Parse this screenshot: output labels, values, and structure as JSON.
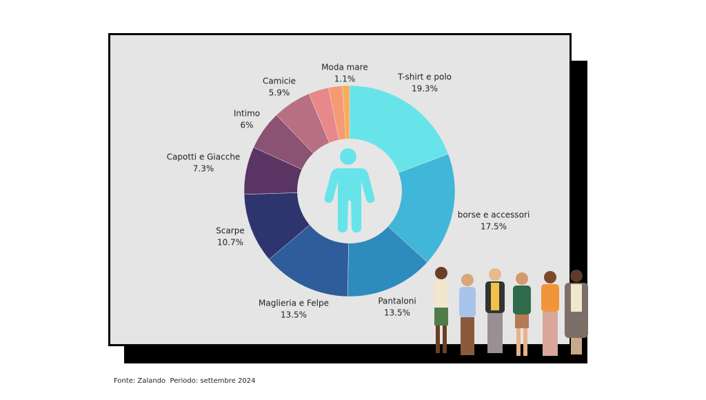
{
  "chart_data": {
    "type": "pie",
    "categories": [
      "T-shirt e polo",
      "borse e accessori",
      "Pantaloni",
      "Maglieria e Felpe",
      "Scarpe",
      "Capotti e Giacche",
      "Intimo",
      "Camicie",
      null,
      null,
      "Moda mare"
    ],
    "values": [
      19.3,
      17.5,
      13.5,
      13.5,
      10.7,
      7.3,
      6,
      5.9,
      3.1,
      2.1,
      1.1
    ],
    "value_labels": [
      "19.3%",
      "17.5%",
      "13.5%",
      "13.5%",
      "10.7%",
      "7.3%",
      "6%",
      "5.9%",
      null,
      null,
      "1.1%"
    ],
    "colors": [
      "#67e4ea",
      "#40b6d8",
      "#2e8bbd",
      "#2f5c9b",
      "#2e356e",
      "#5a3564",
      "#8a5273",
      "#b96f82",
      "#e8888a",
      "#f69a74",
      "#f8ad5a"
    ],
    "source": "Fonte: Zalando  Periodo: settembre 2024"
  }
}
